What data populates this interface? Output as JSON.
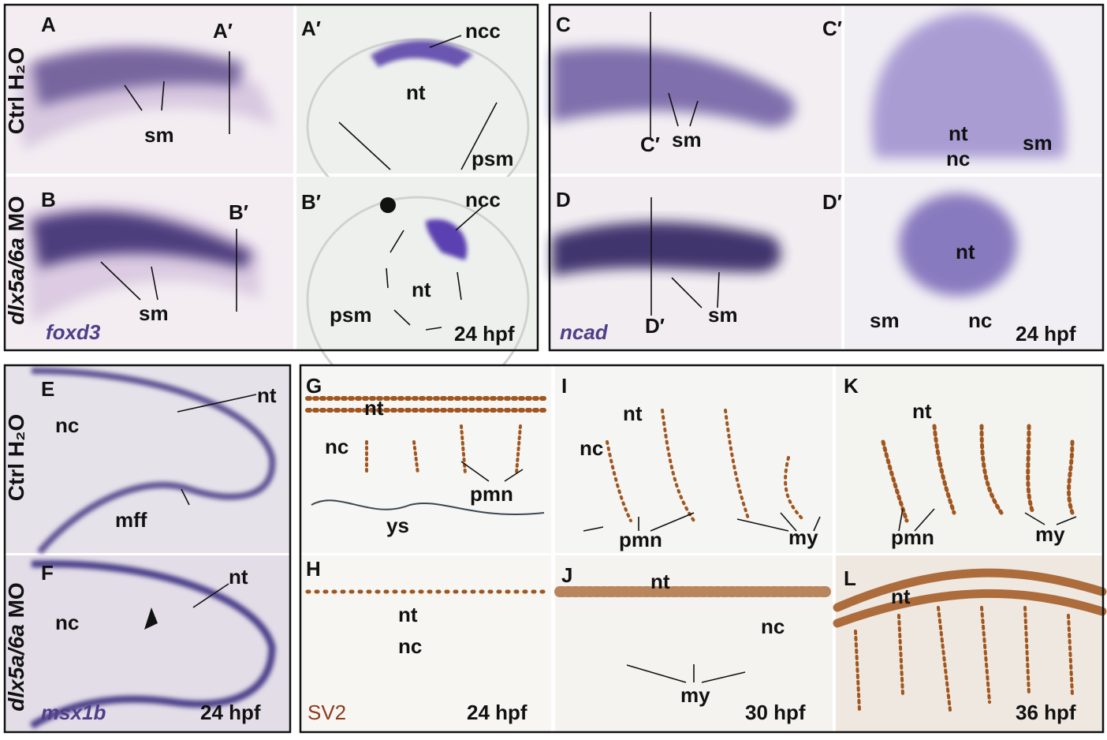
{
  "figure": {
    "row_labels": [
      {
        "pre": "Ctrl H₂O"
      },
      {
        "gene": "dlx5a/6a",
        "suffix": "MO"
      },
      {
        "pre": "Ctrl H₂O"
      },
      {
        "gene": "dlx5a/6a",
        "suffix": "MO"
      }
    ],
    "panels": {
      "A": [
        "A",
        "A′",
        "sm"
      ],
      "A2": [
        "A′",
        "ncc",
        "nt",
        "psm"
      ],
      "B": [
        "B",
        "B′",
        "sm",
        "foxd3"
      ],
      "B2": [
        "B′",
        "ncc",
        "nt",
        "psm",
        "24 hpf"
      ],
      "C": [
        "C",
        "C′",
        "sm"
      ],
      "C2": [
        "C′",
        "nt",
        "nc",
        "sm"
      ],
      "D": [
        "D",
        "D′",
        "sm",
        "ncad"
      ],
      "D2": [
        "D′",
        "nt",
        "sm",
        "nc",
        "24 hpf"
      ],
      "E": [
        "E",
        "nt",
        "nc",
        "mff"
      ],
      "F": [
        "F",
        "nt",
        "nc",
        "msx1b",
        "24 hpf"
      ],
      "G": [
        "G",
        "nt",
        "nc",
        "pmn",
        "ys"
      ],
      "H": [
        "H",
        "nt",
        "nc",
        "SV2",
        "24 hpf"
      ],
      "I": [
        "I",
        "nt",
        "nc",
        "pmn",
        "my"
      ],
      "J": [
        "J",
        "nt",
        "nc",
        "my",
        "30 hpf"
      ],
      "K": [
        "K",
        "nt",
        "pmn",
        "my"
      ],
      "L": [
        "L",
        "nt",
        "36 hpf"
      ]
    }
  }
}
